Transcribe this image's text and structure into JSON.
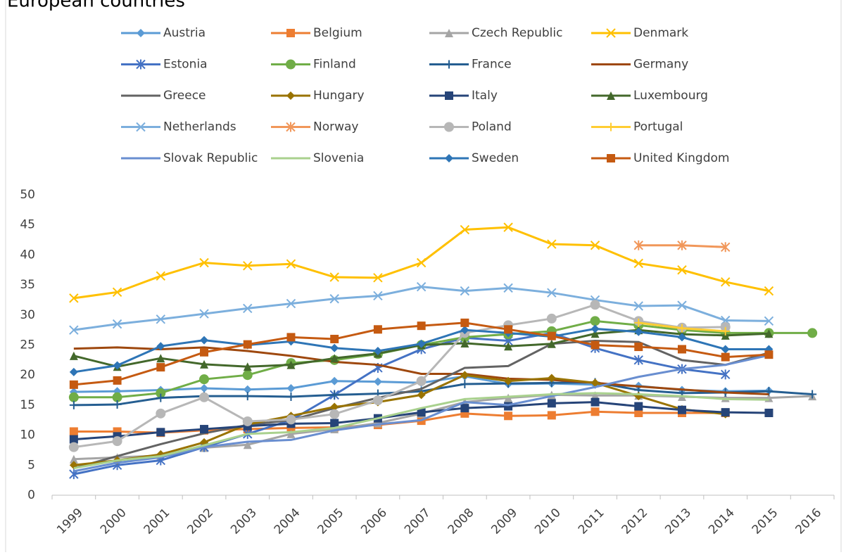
{
  "chart_data": {
    "type": "line",
    "title": "European countries",
    "categories": [
      "1999",
      "2000",
      "2001",
      "2002",
      "2003",
      "2004",
      "2005",
      "2006",
      "2007",
      "2008",
      "2009",
      "2010",
      "2011",
      "2012",
      "2013",
      "2014",
      "2015",
      "2016"
    ],
    "ylim": [
      0,
      50
    ],
    "yticks": [
      0,
      5,
      10,
      15,
      20,
      25,
      30,
      35,
      40,
      45,
      50
    ],
    "grid": false,
    "legend": "top",
    "series": [
      {
        "name": "Austria",
        "color": "#5B9BD5",
        "marker": "diamond",
        "values": [
          17.2,
          17.3,
          17.5,
          17.8,
          17.6,
          17.8,
          19,
          18.9,
          18.7,
          19.8,
          18.5,
          18.6,
          18.4,
          18.2,
          17.5,
          17.3,
          17.4,
          null
        ]
      },
      {
        "name": "Belgium",
        "color": "#ED7D31",
        "marker": "square",
        "values": [
          10.6,
          10.6,
          10.4,
          10.8,
          11,
          11.2,
          11.3,
          11.7,
          12.4,
          13.6,
          13.2,
          13.3,
          13.9,
          13.7,
          13.7,
          13.7,
          null,
          null
        ]
      },
      {
        "name": "Czech Republic",
        "color": "#A5A5A5",
        "marker": "triangle",
        "values": [
          6,
          6.3,
          6.6,
          7.9,
          8.4,
          10.2,
          11,
          12,
          13.6,
          15.5,
          16.2,
          16.7,
          16.6,
          16.6,
          16.4,
          16.2,
          16.2,
          16.5
        ]
      },
      {
        "name": "Denmark",
        "color": "#FFC000",
        "marker": "x",
        "values": [
          32.8,
          33.8,
          36.5,
          38.7,
          38.2,
          38.5,
          36.3,
          36.2,
          38.7,
          44.2,
          44.6,
          41.8,
          41.6,
          38.6,
          37.5,
          35.5,
          34,
          null
        ]
      },
      {
        "name": "Estonia",
        "color": "#4472C4",
        "marker": "asterisk",
        "values": [
          3.5,
          5,
          5.8,
          8,
          10.2,
          12.5,
          16.7,
          21.2,
          24.3,
          26.2,
          25.7,
          27,
          24.5,
          22.5,
          21,
          20.1,
          null,
          null
        ]
      },
      {
        "name": "Finland",
        "color": "#70AD47",
        "marker": "circle",
        "values": [
          16.3,
          16.3,
          17,
          19.3,
          20,
          22,
          22.5,
          23.5,
          25,
          26.3,
          26.8,
          27.3,
          29,
          28.3,
          27.5,
          27,
          27,
          27
        ]
      },
      {
        "name": "France",
        "color": "#255E91",
        "marker": "plus",
        "values": [
          15,
          15.1,
          16.2,
          16.5,
          16.5,
          16.4,
          16.7,
          16.9,
          17.3,
          18.5,
          18.6,
          18.7,
          18.8,
          17.5,
          17,
          17.1,
          17.3,
          16.8
        ]
      },
      {
        "name": "Germany",
        "color": "#9E480E",
        "marker": "none",
        "values": [
          24.4,
          24.6,
          24.3,
          24.6,
          24,
          23.2,
          22.2,
          21.7,
          20.2,
          20.2,
          19.4,
          19.2,
          18.7,
          18.1,
          17.6,
          17.1,
          16.8,
          null
        ]
      },
      {
        "name": "Greece",
        "color": "#636363",
        "marker": "none",
        "values": [
          4.5,
          6.5,
          8.5,
          10.3,
          11.7,
          12.5,
          14.5,
          16.2,
          17.7,
          21.2,
          21.5,
          25.2,
          25.7,
          25.5,
          22.5,
          21.7,
          23.7,
          null
        ]
      },
      {
        "name": "Hungary",
        "color": "#997300",
        "marker": "diamond",
        "values": [
          5,
          5.8,
          6.8,
          8.8,
          11.8,
          13.2,
          14.7,
          15.5,
          16.7,
          20,
          19,
          19.5,
          18.7,
          16.5,
          14.3,
          13.5,
          null,
          null
        ]
      },
      {
        "name": "Italy",
        "color": "#264478",
        "marker": "square",
        "values": [
          9.3,
          9.8,
          10.5,
          11,
          11.5,
          11.9,
          12,
          12.8,
          13.8,
          14.5,
          14.8,
          15.3,
          15.5,
          14.8,
          14.2,
          13.8,
          13.7,
          null
        ]
      },
      {
        "name": "Luxembourg",
        "color": "#43682B",
        "marker": "triangle",
        "values": [
          23.2,
          21.4,
          22.8,
          21.8,
          21.4,
          21.7,
          22.8,
          23.6,
          25,
          25.3,
          24.8,
          25.2,
          26.9,
          27.5,
          26.8,
          26.6,
          26.9,
          null
        ]
      },
      {
        "name": "Netherlands",
        "color": "#7CAFDD",
        "marker": "x",
        "values": [
          27.5,
          28.5,
          29.3,
          30.2,
          31.1,
          31.9,
          32.7,
          33.2,
          34.7,
          34,
          34.5,
          33.7,
          32.5,
          31.5,
          31.6,
          29.1,
          29,
          null
        ]
      },
      {
        "name": "Norway",
        "color": "#F1975A",
        "marker": "asterisk",
        "values": [
          null,
          null,
          null,
          null,
          null,
          null,
          null,
          null,
          null,
          null,
          null,
          null,
          null,
          41.6,
          41.6,
          41.3,
          null,
          null
        ]
      },
      {
        "name": "Poland",
        "color": "#B7B7B7",
        "marker": "circle",
        "values": [
          8,
          9,
          13.6,
          16.3,
          12.3,
          12.6,
          13.5,
          15.8,
          19,
          27,
          28.3,
          29.4,
          31.7,
          29,
          27.9,
          28,
          null,
          null
        ]
      },
      {
        "name": "Portugal",
        "color": "#FFCD33",
        "marker": "plus",
        "values": [
          null,
          null,
          null,
          null,
          null,
          null,
          null,
          null,
          null,
          null,
          null,
          null,
          null,
          28.7,
          27.8,
          27.3,
          null,
          null
        ]
      },
      {
        "name": "Slovak Republic",
        "color": "#698ED0",
        "marker": "none",
        "values": [
          4,
          5.4,
          6.3,
          8,
          8.9,
          9.2,
          10.8,
          11.8,
          12.5,
          15.5,
          15,
          16.5,
          18,
          19.7,
          21,
          21.7,
          23.3,
          null
        ]
      },
      {
        "name": "Slovenia",
        "color": "#A9D18E",
        "marker": "none",
        "values": [
          4.5,
          5.8,
          6.5,
          8.3,
          10.2,
          10.5,
          11.2,
          12.8,
          14.5,
          16,
          16.4,
          16.8,
          17,
          16.8,
          16.5,
          16,
          15.9,
          null
        ]
      },
      {
        "name": "Sweden",
        "color": "#2E75B6",
        "marker": "diamond",
        "values": [
          20.5,
          21.6,
          24.8,
          25.8,
          25,
          25.6,
          24.5,
          24,
          25.2,
          27.5,
          27,
          26.4,
          27.7,
          27.2,
          26.3,
          24.3,
          24.3,
          null
        ]
      },
      {
        "name": "United Kingdom",
        "color": "#C55A11",
        "marker": "square",
        "values": [
          18.4,
          19.1,
          21.3,
          23.8,
          25.1,
          26.3,
          26,
          27.6,
          28.2,
          28.7,
          27.6,
          26.5,
          25,
          24.7,
          24.3,
          23,
          23.4,
          null
        ]
      }
    ]
  }
}
